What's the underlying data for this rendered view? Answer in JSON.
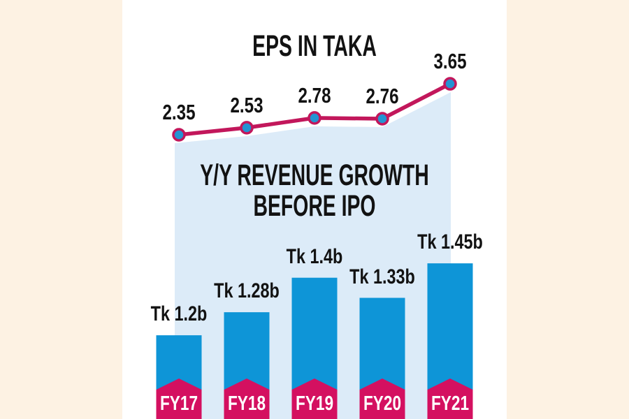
{
  "colors": {
    "page_background": "#fdf2e3",
    "panel_background": "#ffffff",
    "area_fill_blue": "#dcebf8",
    "bar_blue": "#0e95d7",
    "marker_blue": "#2493d2",
    "line_crimson": "#c2175b",
    "badge_crimson": "#d41060",
    "text_black": "#121212",
    "badge_text_white": "#ffffff"
  },
  "chart_data": [
    {
      "type": "line",
      "title": "EPS IN TAKA",
      "categories": [
        "FY17",
        "FY18",
        "FY19",
        "FY20",
        "FY21"
      ],
      "values": [
        2.35,
        2.53,
        2.78,
        2.76,
        3.65
      ],
      "point_labels": [
        "2.35",
        "2.53",
        "2.78",
        "2.76",
        "3.65"
      ],
      "area_fill": true,
      "markers": "circle",
      "grid": false,
      "legend": "none",
      "ylim": [
        2.35,
        3.65
      ]
    },
    {
      "type": "bar",
      "title": "Y/Y REVENUE GROWTH BEFORE IPO",
      "categories": [
        "FY17",
        "FY18",
        "FY19",
        "FY20",
        "FY21"
      ],
      "values": [
        1.2,
        1.28,
        1.4,
        1.33,
        1.45
      ],
      "value_labels": [
        "Tk 1.2b",
        "Tk 1.28b",
        "Tk 1.4b",
        "Tk 1.33b",
        "Tk 1.45b"
      ],
      "category_badge_shape": "pentagon",
      "grid": false,
      "legend": "none",
      "ylim": [
        0.91,
        1.46
      ]
    }
  ]
}
